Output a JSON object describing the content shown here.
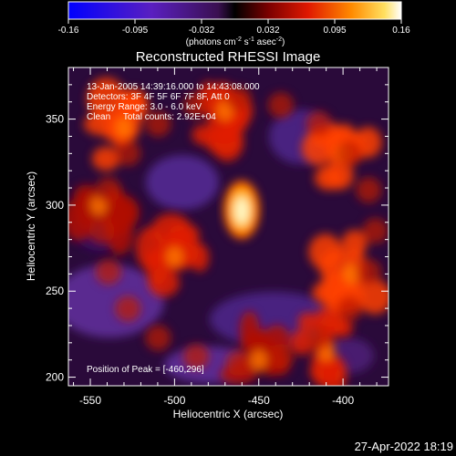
{
  "colorbar": {
    "ticks": [
      "-0.16",
      "-0.095",
      "-0.032",
      "0.032",
      "0.095",
      "0.16"
    ],
    "units_pre": "(photons cm",
    "units_exp1": "-2",
    "units_mid": " s",
    "units_exp2": "-1",
    "units_post": " asec",
    "units_exp3": "-2",
    "units_close": ")",
    "min": -0.16,
    "max": 0.16
  },
  "chart_data": {
    "type": "heatmap",
    "title": "Reconstructed RHESSI Image",
    "xlabel": "Heliocentric X (arcsec)",
    "ylabel": "Heliocentric Y (arcsec)",
    "xlim": [
      -563,
      -373
    ],
    "ylim": [
      195,
      380
    ],
    "xticks": [
      -550,
      -500,
      -450,
      -400
    ],
    "yticks": [
      200,
      250,
      300,
      350
    ],
    "annotations": [
      "13-Jan-2005 14:39:16.000 to 14:43:08.000",
      "Detectors: 3F 4F 5F 6F 7F 8F, Att 0",
      "Energy Range: 3.0 - 6.0 keV",
      "Clean     Total counts: 2.92E+04"
    ],
    "peak_label": "Position of Peak = [-460,296]",
    "peak": [
      -460,
      296
    ],
    "bright_regions": [
      {
        "x": -460,
        "y": 296,
        "intensity": 0.16
      },
      {
        "x": -530,
        "y": 345,
        "intensity": 0.09
      },
      {
        "x": -400,
        "y": 330,
        "intensity": 0.085
      },
      {
        "x": -395,
        "y": 260,
        "intensity": 0.09
      },
      {
        "x": -410,
        "y": 215,
        "intensity": 0.08
      },
      {
        "x": -470,
        "y": 355,
        "intensity": 0.07
      },
      {
        "x": -500,
        "y": 270,
        "intensity": 0.075
      },
      {
        "x": -450,
        "y": 210,
        "intensity": 0.06
      },
      {
        "x": -545,
        "y": 300,
        "intensity": 0.05
      }
    ]
  },
  "footer": {
    "timestamp": "27-Apr-2022 18:19"
  }
}
